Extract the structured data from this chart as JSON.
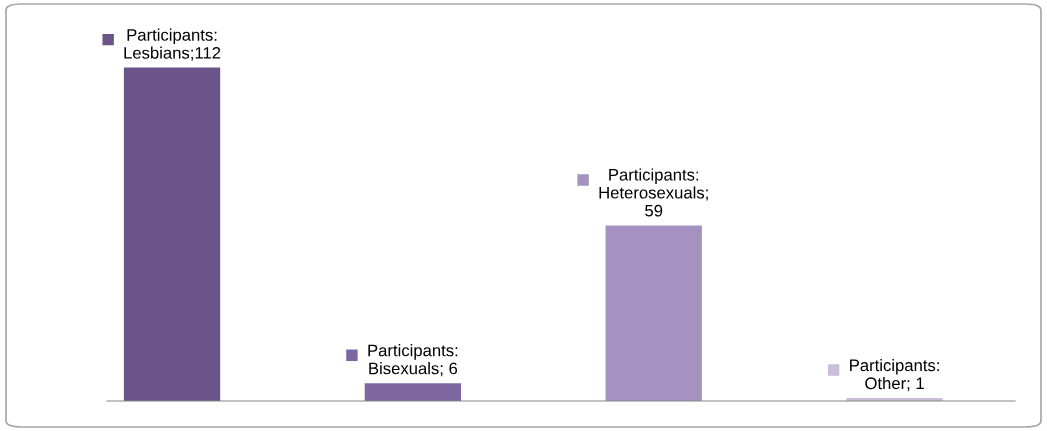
{
  "chart_data": {
    "type": "bar",
    "categories": [
      null,
      null,
      null,
      null
    ],
    "values": [
      112,
      6,
      59,
      1
    ],
    "colors": [
      "#6b5487",
      "#7e66a0",
      "#a592c0",
      "#c9bfda"
    ],
    "value_labels": [
      "Participants:\nLesbians;112",
      "Participants:\nBisexuals; 6",
      "Participants:\nHeterosexuals;\n59",
      "Participants:\nOther; 1"
    ],
    "grid": false,
    "legend": false
  }
}
